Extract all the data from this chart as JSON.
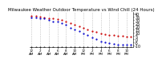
{
  "title": "Milwaukee Weather Outdoor Temperature vs Wind Chill (24 Hours)",
  "title_fontsize": 4.0,
  "background_color": "#ffffff",
  "grid_color": "#aaaaaa",
  "temp_color": "#cc0000",
  "windchill_color": "#0000cc",
  "black_color": "#000000",
  "hours": [
    0,
    1,
    2,
    3,
    4,
    5,
    6,
    7,
    8,
    9,
    10,
    11,
    12,
    13,
    14,
    15,
    16,
    17,
    18,
    19,
    20,
    21,
    22,
    23
  ],
  "temp": [
    36,
    36,
    35,
    34,
    33,
    32,
    31,
    30,
    28,
    25,
    22,
    20,
    18,
    15,
    13,
    11,
    9,
    8,
    7,
    6,
    5,
    5,
    4,
    4
  ],
  "windchill": [
    34,
    34,
    33,
    32,
    30,
    28,
    27,
    25,
    22,
    18,
    15,
    12,
    9,
    6,
    3,
    0,
    -3,
    -5,
    -6,
    -7,
    -8,
    -8,
    -9,
    -9
  ],
  "ylim": [
    -12,
    42
  ],
  "yticks": [
    -10,
    -5,
    0,
    5,
    10,
    15,
    20,
    25,
    30,
    35,
    40
  ],
  "ytick_labels": [
    "-10",
    "-5",
    "0",
    "5",
    "10",
    "15",
    "20",
    "25",
    "30",
    "35",
    "40"
  ],
  "xlim": [
    -0.5,
    23.5
  ],
  "xtick_positions": [
    0,
    2,
    4,
    6,
    8,
    10,
    12,
    14,
    16,
    18,
    20,
    22
  ],
  "xtick_labels": [
    "12\nAM",
    "2\nAM",
    "4\nAM",
    "6\nAM",
    "8\nAM",
    "10\nAM",
    "12\nPM",
    "2\nPM",
    "4\nPM",
    "6\nPM",
    "8\nPM",
    "10\nPM"
  ],
  "marker_size": 1.2,
  "ylabel_fontsize": 3.5,
  "xlabel_fontsize": 3.0
}
